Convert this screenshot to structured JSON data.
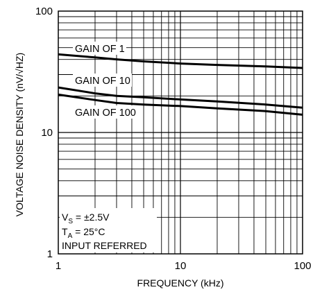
{
  "chart_data": {
    "type": "line",
    "xscale": "log",
    "yscale": "log",
    "xlim": [
      1,
      100
    ],
    "ylim": [
      1,
      100
    ],
    "xlabel": "FREQUENCY (kHz)",
    "ylabel": "VOLTAGE NOISE DENSITY (nV/√HZ)",
    "x_ticks": [
      "1",
      "10",
      "100"
    ],
    "y_ticks": [
      "1",
      "10",
      "100"
    ],
    "grid": true,
    "series": [
      {
        "name": "GAIN OF 1",
        "x": [
          1,
          2,
          3,
          5,
          10,
          20,
          50,
          100
        ],
        "y": [
          44,
          41.5,
          40,
          38.5,
          37,
          36,
          35,
          34
        ]
      },
      {
        "name": "GAIN OF 10",
        "x": [
          1,
          2,
          3,
          5,
          10,
          20,
          50,
          100
        ],
        "y": [
          23.5,
          21,
          20,
          19.5,
          18.7,
          18,
          17,
          16
        ]
      },
      {
        "name": "GAIN OF 100",
        "x": [
          1,
          2,
          3,
          5,
          10,
          20,
          50,
          100
        ],
        "y": [
          20.5,
          18.5,
          17.5,
          17,
          16.5,
          15.8,
          15,
          14
        ]
      }
    ],
    "annotations": {
      "vs_label": "V",
      "vs_sub": "S",
      "vs_value": " = ±2.5V",
      "ta_label": "T",
      "ta_sub": "A",
      "ta_value": " = 25°C",
      "note": "INPUT REFERRED"
    }
  }
}
